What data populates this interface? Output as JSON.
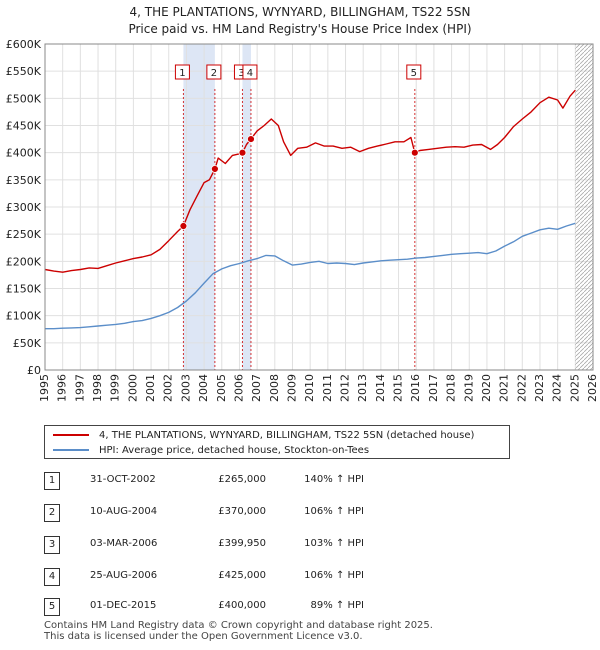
{
  "title_line1": "4, THE PLANTATIONS, WYNYARD, BILLINGHAM, TS22 5SN",
  "title_line2": "Price paid vs. HM Land Registry's House Price Index (HPI)",
  "colors": {
    "property": "#cc0000",
    "hpi": "#5b8ec9",
    "marker_line": "#cc0000",
    "highlight": "#dde6f5",
    "grid": "#e0e0e0"
  },
  "chart_data": {
    "type": "line",
    "title": "4, THE PLANTATIONS, WYNYARD, BILLINGHAM, TS22 5SN — Price paid vs. HM Land Registry's House Price Index (HPI)",
    "xlim": [
      1995,
      2026
    ],
    "ylim": [
      0,
      600000
    ],
    "x_ticks": [
      1995,
      1996,
      1997,
      1998,
      1999,
      2000,
      2001,
      2002,
      2003,
      2004,
      2005,
      2006,
      2007,
      2008,
      2009,
      2010,
      2011,
      2012,
      2013,
      2014,
      2015,
      2016,
      2017,
      2018,
      2019,
      2020,
      2021,
      2022,
      2023,
      2024,
      2025,
      2026
    ],
    "y_ticks": [
      {
        "value": 0,
        "label": "£0"
      },
      {
        "value": 50000,
        "label": "£50K"
      },
      {
        "value": 100000,
        "label": "£100K"
      },
      {
        "value": 150000,
        "label": "£150K"
      },
      {
        "value": 200000,
        "label": "£200K"
      },
      {
        "value": 250000,
        "label": "£250K"
      },
      {
        "value": 300000,
        "label": "£300K"
      },
      {
        "value": 350000,
        "label": "£350K"
      },
      {
        "value": 400000,
        "label": "£400K"
      },
      {
        "value": 450000,
        "label": "£450K"
      },
      {
        "value": 500000,
        "label": "£500K"
      },
      {
        "value": 550000,
        "label": "£550K"
      },
      {
        "value": 600000,
        "label": "£600K"
      }
    ],
    "series": [
      {
        "name": "4, THE PLANTATIONS, WYNYARD, BILLINGHAM, TS22 5SN (detached house)",
        "color": "#cc0000",
        "x": [
          1995.0,
          1995.5,
          1996.0,
          1996.5,
          1997.0,
          1997.5,
          1998.0,
          1998.5,
          1999.0,
          1999.5,
          2000.0,
          2000.5,
          2001.0,
          2001.5,
          2002.0,
          2002.5,
          2002.83,
          2003.2,
          2003.6,
          2004.0,
          2004.3,
          2004.61,
          2004.8,
          2005.2,
          2005.6,
          2006.0,
          2006.17,
          2006.4,
          2006.65,
          2007.0,
          2007.4,
          2007.8,
          2008.2,
          2008.5,
          2008.9,
          2009.3,
          2009.8,
          2010.3,
          2010.8,
          2011.3,
          2011.8,
          2012.3,
          2012.8,
          2013.3,
          2013.8,
          2014.3,
          2014.8,
          2015.3,
          2015.7,
          2015.92,
          2016.2,
          2016.7,
          2017.2,
          2017.7,
          2018.2,
          2018.7,
          2019.2,
          2019.7,
          2020.2,
          2020.6,
          2021.0,
          2021.5,
          2022.0,
          2022.5,
          2023.0,
          2023.5,
          2024.0,
          2024.3,
          2024.7,
          2025.0
        ],
        "values": [
          185000,
          182000,
          180000,
          183000,
          185000,
          188000,
          187000,
          192000,
          197000,
          201000,
          205000,
          208000,
          212000,
          222000,
          238000,
          255000,
          265000,
          295000,
          320000,
          345000,
          350000,
          370000,
          390000,
          380000,
          395000,
          398000,
          399950,
          415000,
          425000,
          440000,
          450000,
          462000,
          450000,
          420000,
          395000,
          408000,
          410000,
          418000,
          412000,
          412000,
          408000,
          410000,
          402000,
          408000,
          412000,
          416000,
          420000,
          420000,
          428000,
          400000,
          404000,
          406000,
          408000,
          410000,
          411000,
          410000,
          414000,
          415000,
          406000,
          415000,
          428000,
          448000,
          462000,
          475000,
          492000,
          502000,
          497000,
          482000,
          504000,
          515000
        ]
      },
      {
        "name": "HPI: Average price, detached house, Stockton-on-Tees",
        "color": "#5b8ec9",
        "x": [
          1995.0,
          1995.5,
          1996.0,
          1996.5,
          1997.0,
          1997.5,
          1998.0,
          1998.5,
          1999.0,
          1999.5,
          2000.0,
          2000.5,
          2001.0,
          2001.5,
          2002.0,
          2002.5,
          2003.0,
          2003.5,
          2004.0,
          2004.5,
          2005.0,
          2005.5,
          2006.0,
          2006.5,
          2007.0,
          2007.5,
          2008.0,
          2008.5,
          2009.0,
          2009.5,
          2010.0,
          2010.5,
          2011.0,
          2011.5,
          2012.0,
          2012.5,
          2013.0,
          2013.5,
          2014.0,
          2014.5,
          2015.0,
          2015.5,
          2016.0,
          2016.5,
          2017.0,
          2017.5,
          2018.0,
          2018.5,
          2019.0,
          2019.5,
          2020.0,
          2020.5,
          2021.0,
          2021.5,
          2022.0,
          2022.5,
          2023.0,
          2023.5,
          2024.0,
          2024.5,
          2025.0
        ],
        "values": [
          76000,
          76000,
          77000,
          77500,
          78000,
          79500,
          81000,
          82500,
          84000,
          86000,
          89000,
          91000,
          95000,
          100000,
          106000,
          115000,
          127000,
          142000,
          160000,
          177000,
          186000,
          192000,
          196000,
          201000,
          205000,
          211000,
          210000,
          201000,
          193000,
          195000,
          198000,
          200000,
          196000,
          197000,
          196000,
          194000,
          197000,
          199000,
          201000,
          202000,
          203000,
          204000,
          206000,
          207000,
          209000,
          211000,
          213000,
          214000,
          215000,
          216000,
          214000,
          219000,
          228000,
          236000,
          246000,
          252000,
          258000,
          261000,
          259000,
          265000,
          270000
        ]
      }
    ],
    "sales": [
      {
        "label": "1",
        "x": 2002.83,
        "value": 265000
      },
      {
        "label": "2",
        "x": 2004.61,
        "value": 370000
      },
      {
        "label": "3",
        "x": 2006.17,
        "value": 399950
      },
      {
        "label": "4",
        "x": 2006.65,
        "value": 425000
      },
      {
        "label": "5",
        "x": 2015.92,
        "value": 400000
      }
    ],
    "highlight_ranges": [
      [
        2002.83,
        2004.61
      ],
      [
        2006.17,
        2006.65
      ]
    ],
    "hatch_from": 2025.0
  },
  "legend": {
    "property_label": "4, THE PLANTATIONS, WYNYARD, BILLINGHAM, TS22 5SN (detached house)",
    "hpi_label": "HPI: Average price, detached house, Stockton-on-Tees"
  },
  "transactions": [
    {
      "num": "1",
      "date": "31-OCT-2002",
      "price": "£265,000",
      "hpi": "140% ↑ HPI"
    },
    {
      "num": "2",
      "date": "10-AUG-2004",
      "price": "£370,000",
      "hpi": "106% ↑ HPI"
    },
    {
      "num": "3",
      "date": "03-MAR-2006",
      "price": "£399,950",
      "hpi": "103% ↑ HPI"
    },
    {
      "num": "4",
      "date": "25-AUG-2006",
      "price": "£425,000",
      "hpi": "106% ↑ HPI"
    },
    {
      "num": "5",
      "date": "01-DEC-2015",
      "price": "£400,000",
      "hpi": "89% ↑ HPI"
    }
  ],
  "footer": {
    "line1": "Contains HM Land Registry data © Crown copyright and database right 2025.",
    "line2": "This data is licensed under the Open Government Licence v3.0."
  }
}
